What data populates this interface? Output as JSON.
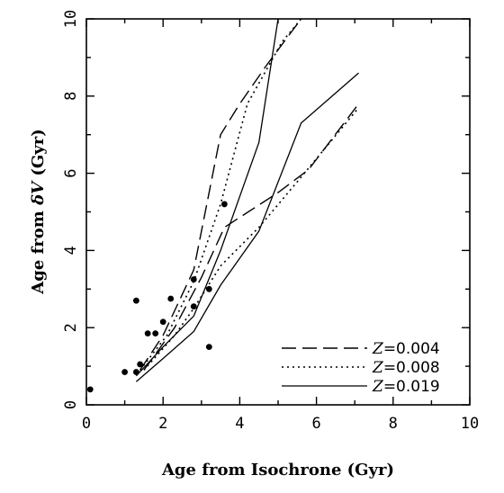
{
  "chart_data": {
    "type": "line",
    "xlabel": "Age from Isochrone (Gyr)",
    "ylabel_prefix": "Age from ",
    "ylabel_symbol": "δV",
    "ylabel_suffix": " (Gyr)",
    "xlim": [
      0,
      10
    ],
    "ylim": [
      0,
      10
    ],
    "xticks": [
      0,
      2,
      4,
      6,
      8,
      10
    ],
    "yticks": [
      0,
      2,
      4,
      6,
      8,
      10
    ],
    "grid": false,
    "legend_position": "bottom-right",
    "series": [
      {
        "legend_var": "Z",
        "legend_value": "=0.004",
        "style": "dashed",
        "curves": [
          [
            [
              1.5,
              0.9
            ],
            [
              2.3,
              2.0
            ],
            [
              3.0,
              3.3
            ],
            [
              3.6,
              4.6
            ],
            [
              5.0,
              5.5
            ],
            [
              5.8,
              6.1
            ],
            [
              7.1,
              7.8
            ]
          ],
          [
            [
              1.4,
              0.9
            ],
            [
              2.0,
              1.8
            ],
            [
              2.8,
              3.5
            ],
            [
              3.5,
              7.0
            ],
            [
              4.0,
              7.8
            ],
            [
              4.7,
              8.8
            ],
            [
              5.6,
              10.0
            ]
          ]
        ]
      },
      {
        "legend_var": "Z",
        "legend_value": "=0.008",
        "style": "dotted",
        "curves": [
          [
            [
              1.5,
              0.9
            ],
            [
              2.3,
              1.8
            ],
            [
              2.8,
              2.5
            ],
            [
              3.5,
              3.6
            ],
            [
              4.5,
              4.6
            ],
            [
              5.6,
              5.9
            ],
            [
              7.1,
              7.7
            ]
          ],
          [
            [
              1.4,
              0.9
            ],
            [
              2.1,
              1.8
            ],
            [
              2.8,
              3.2
            ],
            [
              3.5,
              5.2
            ],
            [
              4.2,
              7.8
            ],
            [
              5.1,
              9.4
            ],
            [
              5.6,
              10.0
            ]
          ]
        ]
      },
      {
        "legend_var": "Z",
        "legend_value": "=0.019",
        "style": "solid",
        "curves": [
          [
            [
              1.3,
              0.6
            ],
            [
              2.0,
              1.2
            ],
            [
              2.8,
              1.9
            ],
            [
              3.5,
              3.1
            ],
            [
              4.5,
              4.5
            ],
            [
              5.6,
              7.3
            ],
            [
              7.1,
              8.6
            ]
          ],
          [
            [
              1.3,
              0.75
            ],
            [
              2.0,
              1.5
            ],
            [
              2.8,
              2.3
            ],
            [
              3.5,
              4.0
            ],
            [
              4.5,
              6.8
            ],
            [
              5.0,
              10.0
            ]
          ]
        ]
      }
    ],
    "points": [
      [
        0.1,
        0.4
      ],
      [
        1.0,
        0.85
      ],
      [
        1.3,
        0.85
      ],
      [
        1.4,
        1.05
      ],
      [
        1.3,
        2.7
      ],
      [
        1.6,
        1.85
      ],
      [
        1.8,
        1.85
      ],
      [
        2.0,
        2.15
      ],
      [
        2.2,
        2.75
      ],
      [
        2.8,
        2.55
      ],
      [
        2.8,
        3.25
      ],
      [
        3.2,
        3.0
      ],
      [
        3.2,
        1.5
      ],
      [
        3.6,
        5.2
      ]
    ],
    "colors": {
      "line": "#000000",
      "marker": "#000000"
    }
  }
}
